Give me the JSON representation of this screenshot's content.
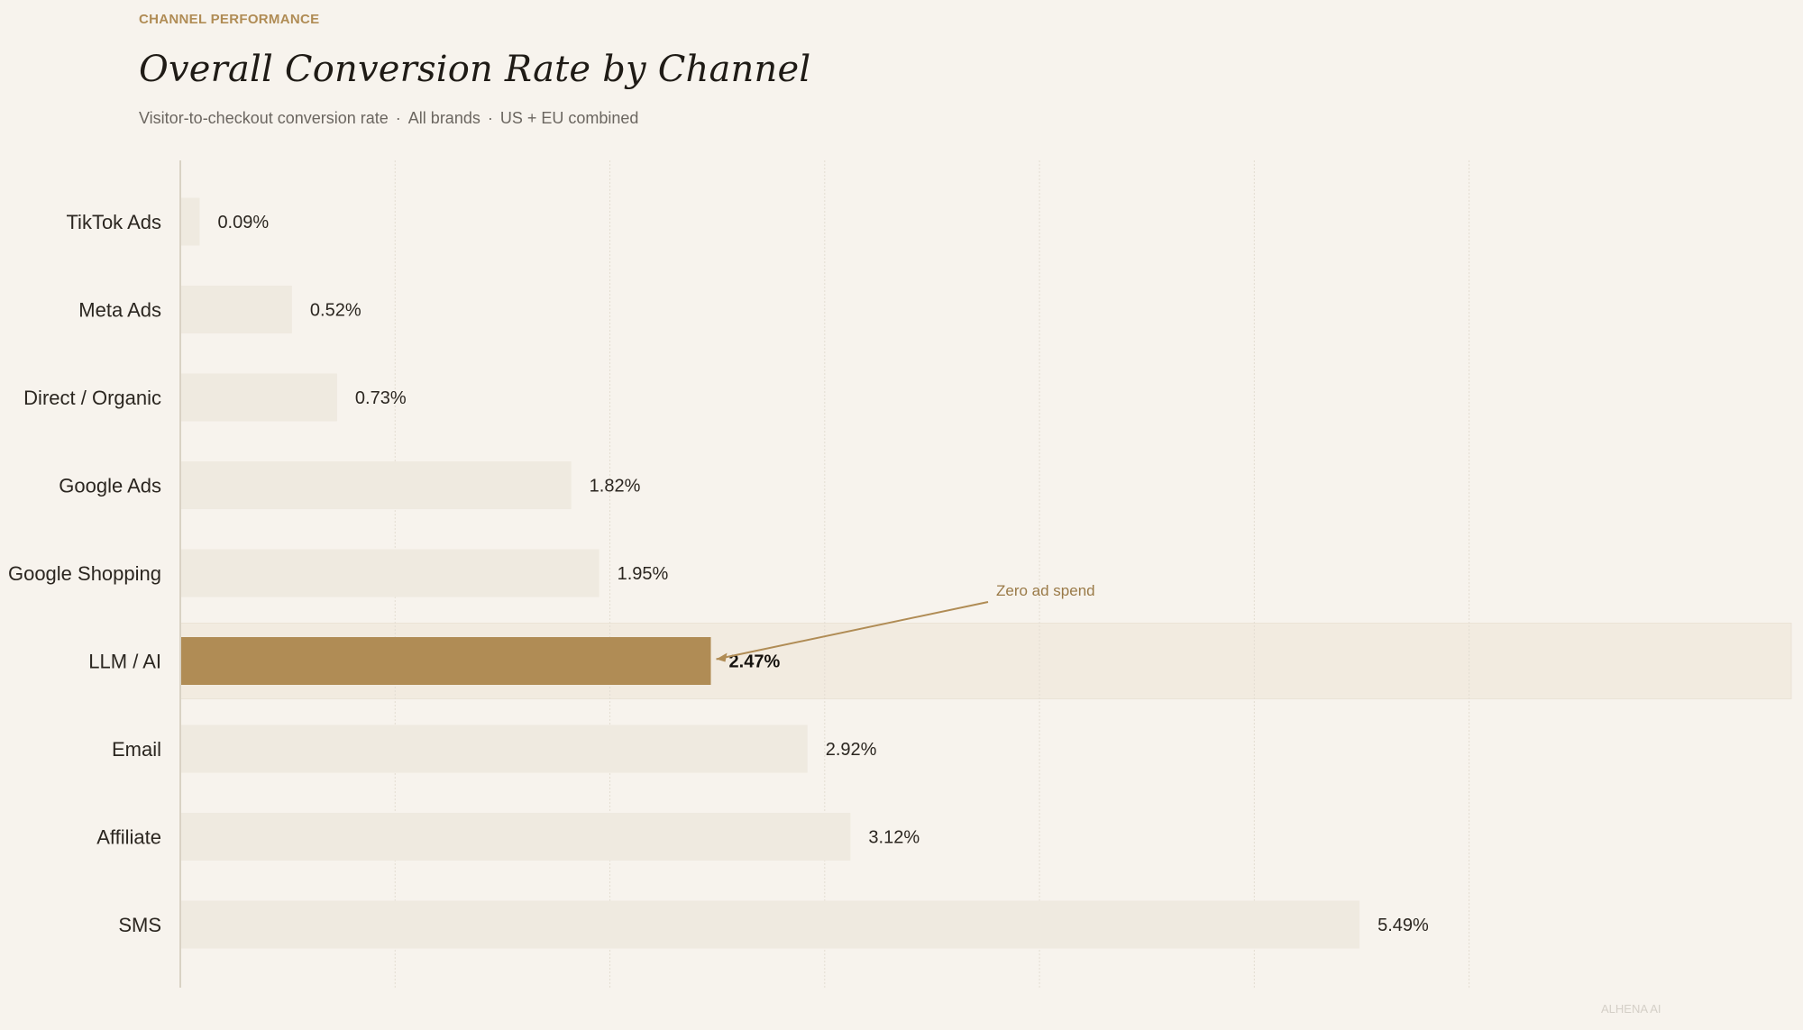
{
  "header": {
    "kicker": "CHANNEL PERFORMANCE",
    "title": "Overall Conversion Rate by Channel",
    "subtitle_parts": [
      "Visitor-to-checkout conversion rate",
      "All brands",
      "US + EU combined"
    ],
    "separator": "·"
  },
  "footer": {
    "watermark": "ALHENA AI"
  },
  "colors": {
    "background": "#f7f3ed",
    "bar": "#efeae0",
    "highlight_bar": "#b08c55",
    "highlight_band": "#f2ebe0",
    "accent": "#b08c55",
    "axis": "#d9d2c4",
    "grid": "#e3ddd2"
  },
  "chart_data": {
    "type": "bar",
    "orientation": "horizontal",
    "title": "Overall Conversion Rate by Channel",
    "xlabel": "",
    "ylabel": "",
    "xlim": [
      0,
      7.5
    ],
    "grid": true,
    "grid_values": [
      0,
      1,
      2,
      3,
      4,
      5,
      6
    ],
    "value_suffix": "%",
    "categories": [
      "TikTok Ads",
      "Meta Ads",
      "Direct / Organic",
      "Google Ads",
      "Google Shopping",
      "LLM / AI",
      "Email",
      "Affiliate",
      "SMS"
    ],
    "values": [
      0.09,
      0.52,
      0.73,
      1.82,
      1.95,
      2.47,
      2.92,
      3.12,
      5.49
    ],
    "value_labels": [
      "0.09%",
      "0.52%",
      "0.73%",
      "1.82%",
      "1.95%",
      "2.47%",
      "2.92%",
      "3.12%",
      "5.49%"
    ],
    "highlight": "LLM / AI",
    "annotations": [
      {
        "target": "LLM / AI",
        "text": "Zero ad spend"
      }
    ]
  }
}
